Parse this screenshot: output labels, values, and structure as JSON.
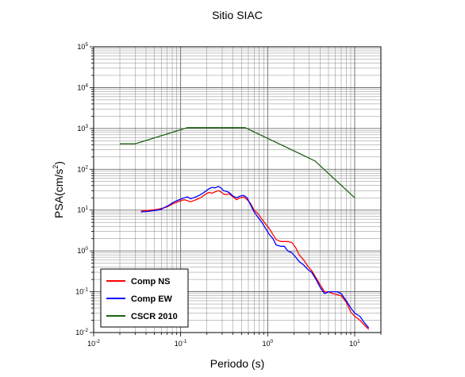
{
  "chart_data": {
    "type": "line",
    "title": "Sitio SIAC",
    "xlabel": "Periodo (s)",
    "ylabel_base": "PSA(cm/s",
    "ylabel_exp": "2",
    "ylabel_close": ")",
    "x_scale": "log",
    "y_scale": "log",
    "xlim": [
      0.01,
      20
    ],
    "ylim": [
      0.01,
      100000
    ],
    "grid": true,
    "legend_position": "bottom-left",
    "x_ticks": [
      {
        "value": 0.01,
        "base": "10",
        "exp": "-2"
      },
      {
        "value": 0.1,
        "base": "10",
        "exp": "-1"
      },
      {
        "value": 1,
        "base": "10",
        "exp": "0"
      },
      {
        "value": 10,
        "base": "10",
        "exp": "1"
      }
    ],
    "y_ticks": [
      {
        "value": 0.01,
        "base": "10",
        "exp": "-2"
      },
      {
        "value": 0.1,
        "base": "10",
        "exp": "-1"
      },
      {
        "value": 1,
        "base": "10",
        "exp": "0"
      },
      {
        "value": 10,
        "base": "10",
        "exp": "1"
      },
      {
        "value": 100,
        "base": "10",
        "exp": "2"
      },
      {
        "value": 1000,
        "base": "10",
        "exp": "3"
      },
      {
        "value": 10000,
        "base": "10",
        "exp": "4"
      },
      {
        "value": 100000,
        "base": "10",
        "exp": "5"
      }
    ],
    "series": [
      {
        "name": "Comp NS",
        "color": "#ff0000",
        "x": [
          0.035,
          0.04,
          0.045,
          0.05,
          0.055,
          0.06,
          0.065,
          0.07,
          0.075,
          0.08,
          0.09,
          0.1,
          0.11,
          0.12,
          0.13,
          0.15,
          0.17,
          0.19,
          0.21,
          0.23,
          0.25,
          0.27,
          0.29,
          0.31,
          0.33,
          0.36,
          0.4,
          0.44,
          0.48,
          0.53,
          0.58,
          0.63,
          0.7,
          0.78,
          0.86,
          0.95,
          1.05,
          1.15,
          1.25,
          1.4,
          1.55,
          1.7,
          1.9,
          2.1,
          2.3,
          2.6,
          2.9,
          3.2,
          3.6,
          4.0,
          4.5,
          5.0,
          5.6,
          6.3,
          7.0,
          8.0,
          9.0,
          10.0,
          11.5,
          13.0,
          14.5
        ],
        "y": [
          9.5,
          9.7,
          10.0,
          10.2,
          10.5,
          11.0,
          11.5,
          12.0,
          13.0,
          14.0,
          15.5,
          17.0,
          18.0,
          17.0,
          16.0,
          18.0,
          20.0,
          24.0,
          27.0,
          26.0,
          28.0,
          30.0,
          28.0,
          25.0,
          24.0,
          25.0,
          21.0,
          18.0,
          20.0,
          21.0,
          18.0,
          15.0,
          10.0,
          8.0,
          6.0,
          4.5,
          3.5,
          2.5,
          1.9,
          1.7,
          1.7,
          1.7,
          1.6,
          1.2,
          0.8,
          0.6,
          0.42,
          0.33,
          0.22,
          0.15,
          0.1,
          0.1,
          0.09,
          0.085,
          0.08,
          0.055,
          0.032,
          0.025,
          0.02,
          0.015,
          0.012
        ]
      },
      {
        "name": "Comp EW",
        "color": "#0000ff",
        "x": [
          0.035,
          0.04,
          0.045,
          0.05,
          0.055,
          0.06,
          0.065,
          0.07,
          0.075,
          0.08,
          0.09,
          0.1,
          0.11,
          0.12,
          0.13,
          0.15,
          0.17,
          0.19,
          0.21,
          0.23,
          0.25,
          0.27,
          0.29,
          0.31,
          0.33,
          0.36,
          0.4,
          0.44,
          0.48,
          0.53,
          0.58,
          0.63,
          0.7,
          0.78,
          0.86,
          0.95,
          1.05,
          1.15,
          1.25,
          1.4,
          1.55,
          1.7,
          1.9,
          2.1,
          2.3,
          2.6,
          2.9,
          3.2,
          3.6,
          4.0,
          4.5,
          5.0,
          5.6,
          6.3,
          7.0,
          8.0,
          9.0,
          10.0,
          11.5,
          13.0,
          14.5
        ],
        "y": [
          9.0,
          9.2,
          9.5,
          9.8,
          10.0,
          10.5,
          11.5,
          12.5,
          13.5,
          15.0,
          17.0,
          18.5,
          20.0,
          21.0,
          19.0,
          21.0,
          24.0,
          28.0,
          33.0,
          36.0,
          35.0,
          38.0,
          35.0,
          30.0,
          29.0,
          27.0,
          22.0,
          20.0,
          22.0,
          23.0,
          20.0,
          14.0,
          9.0,
          6.5,
          5.0,
          3.5,
          2.5,
          2.0,
          1.4,
          1.3,
          1.3,
          1.0,
          0.9,
          0.7,
          0.55,
          0.45,
          0.35,
          0.3,
          0.2,
          0.13,
          0.09,
          0.1,
          0.1,
          0.1,
          0.09,
          0.06,
          0.04,
          0.03,
          0.025,
          0.017,
          0.013
        ]
      },
      {
        "name": "CSCR 2010",
        "color": "#1e6414",
        "x": [
          0.02,
          0.03,
          0.12,
          0.55,
          3.5,
          10.0
        ],
        "y": [
          420,
          420,
          1050,
          1050,
          160,
          20
        ]
      }
    ]
  }
}
